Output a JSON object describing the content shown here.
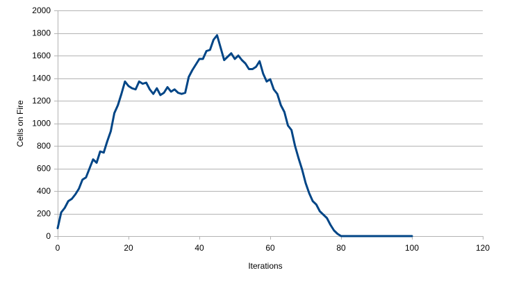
{
  "chart_data": {
    "type": "line",
    "title": "",
    "xlabel": "Iterations",
    "ylabel": "Cells on Fire",
    "xlim": [
      0,
      120
    ],
    "ylim": [
      0,
      2000
    ],
    "xticks": [
      0,
      20,
      40,
      60,
      80,
      100,
      120
    ],
    "yticks": [
      0,
      200,
      400,
      600,
      800,
      1000,
      1200,
      1400,
      1600,
      1800,
      2000
    ],
    "grid": "horizontal",
    "legend": "none",
    "line_color": "#004586",
    "series": [
      {
        "x": [
          0,
          1,
          2,
          3,
          4,
          5,
          6,
          7,
          8,
          9,
          10,
          11,
          12,
          13,
          14,
          15,
          16,
          17,
          18,
          19,
          20,
          21,
          22,
          23,
          24,
          25,
          26,
          27,
          28,
          29,
          30,
          31,
          32,
          33,
          34,
          35,
          36,
          37,
          38,
          39,
          40,
          41,
          42,
          43,
          44,
          45,
          46,
          47,
          48,
          49,
          50,
          51,
          52,
          53,
          54,
          55,
          56,
          57,
          58,
          59,
          60,
          61,
          62,
          63,
          64,
          65,
          66,
          67,
          68,
          69,
          70,
          71,
          72,
          73,
          74,
          75,
          76,
          77,
          78,
          79,
          80,
          81,
          82,
          83,
          84,
          85,
          86,
          87,
          88,
          89,
          90,
          91,
          92,
          93,
          94,
          95,
          96,
          97,
          98,
          99,
          100
        ],
        "values": [
          70,
          210,
          250,
          310,
          330,
          370,
          420,
          500,
          520,
          600,
          680,
          650,
          750,
          740,
          840,
          930,
          1090,
          1160,
          1260,
          1370,
          1330,
          1310,
          1300,
          1370,
          1350,
          1360,
          1300,
          1260,
          1310,
          1250,
          1270,
          1320,
          1280,
          1300,
          1270,
          1260,
          1270,
          1410,
          1470,
          1520,
          1570,
          1570,
          1640,
          1650,
          1740,
          1780,
          1670,
          1560,
          1590,
          1620,
          1570,
          1600,
          1560,
          1530,
          1480,
          1480,
          1500,
          1550,
          1440,
          1370,
          1390,
          1300,
          1260,
          1160,
          1100,
          980,
          940,
          800,
          690,
          590,
          470,
          380,
          310,
          280,
          220,
          190,
          160,
          100,
          50,
          20,
          0,
          0,
          0,
          0,
          0,
          0,
          0,
          0,
          0,
          0,
          0,
          0,
          0,
          0,
          0,
          0,
          0,
          0,
          0,
          0,
          0
        ]
      }
    ]
  }
}
